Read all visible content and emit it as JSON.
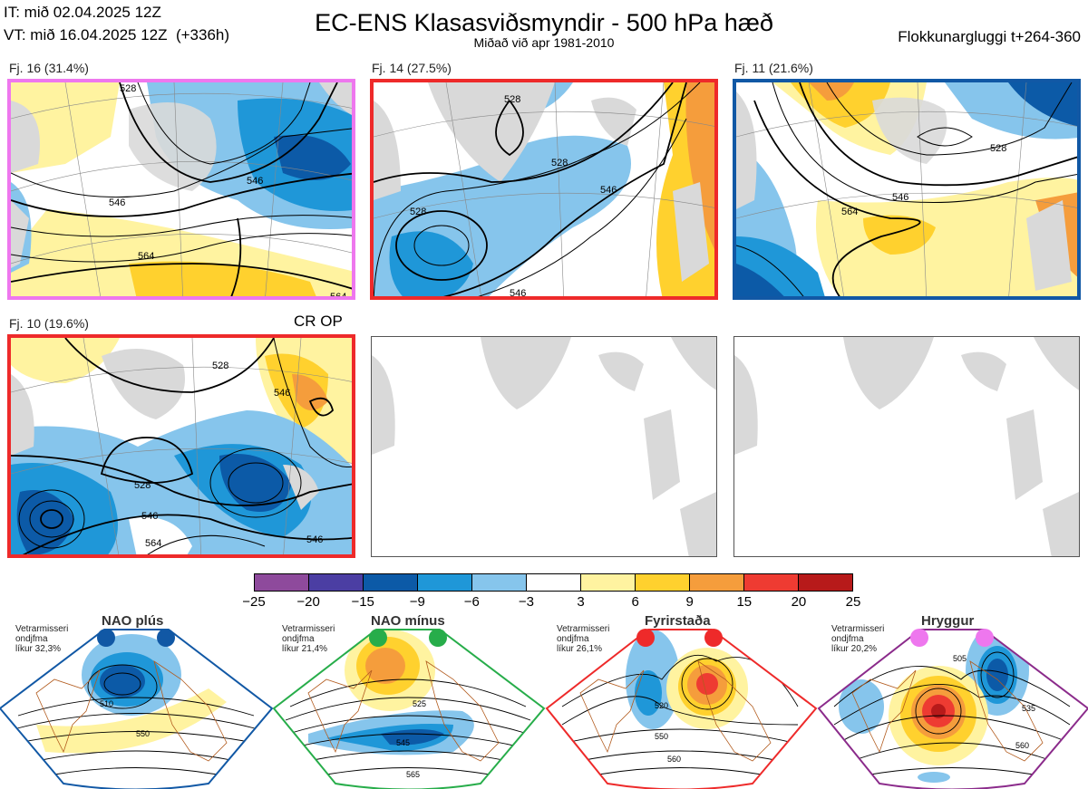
{
  "header": {
    "it_line": "IT: mið 02.04.2025 12Z",
    "vt_line": "VT: mið 16.04.2025 12Z  (+336h)",
    "title": "EC-ENS Klasasviðsmyndir - 500 hPa hæð",
    "subtitle": "Miðað við apr 1981-2010",
    "window": "Flokkunargluggi t+264-360"
  },
  "panels": [
    {
      "label": "Fj. 16 (31.4%)",
      "border_color": "#ee77ee",
      "contours": [
        "528",
        "546",
        "564",
        "546",
        "564"
      ]
    },
    {
      "label": "Fj. 14 (27.5%)",
      "border_color": "#ee2a2a",
      "contours": [
        "528",
        "528",
        "528",
        "546",
        "546"
      ]
    },
    {
      "label": "Fj. 11 (21.6%)",
      "border_color": "#1158a5",
      "contours": [
        "528",
        "546",
        "564"
      ]
    },
    {
      "label": "Fj. 10 (19.6%)",
      "border_color": "#ee2a2a",
      "tag": "CR OP",
      "contours": [
        "528",
        "546",
        "528",
        "546",
        "564",
        "546"
      ]
    }
  ],
  "colorbar": {
    "ticks": [
      "−25",
      "−20",
      "−15",
      "−9",
      "−6",
      "−3",
      "3",
      "6",
      "9",
      "15",
      "20",
      "25"
    ],
    "colors": [
      "#8e4a9c",
      "#4b3ea3",
      "#0c5aa7",
      "#1f97d8",
      "#86c5ec",
      "#ffffff",
      "#fff3a0",
      "#ffd12e",
      "#f59d3c",
      "#ee3b32",
      "#b71a1a"
    ]
  },
  "regimes": [
    {
      "name": "NAO plús",
      "info": "Vetrarmisseri\nondjfma\nlíkur 32,3%",
      "color": "#1158a5",
      "contours": [
        "510",
        "550"
      ]
    },
    {
      "name": "NAO mínus",
      "info": "Vetrarmisseri\nondjfma\nlíkur 21,4%",
      "color": "#27ad4a",
      "contours": [
        "525",
        "545",
        "565"
      ]
    },
    {
      "name": "Fyrirstaða",
      "info": "Vetrarmisseri\nondjfma\nlíkur 26,1%",
      "color": "#ee2a2a",
      "contours": [
        "520",
        "550",
        "560"
      ]
    },
    {
      "name": "Hryggur",
      "info": "Vetrarmisseri\nondjfma\nlíkur 20,2%",
      "color": "#8b2b8b",
      "dot_color": "#ee77ee",
      "contours": [
        "505",
        "535",
        "560"
      ]
    }
  ]
}
